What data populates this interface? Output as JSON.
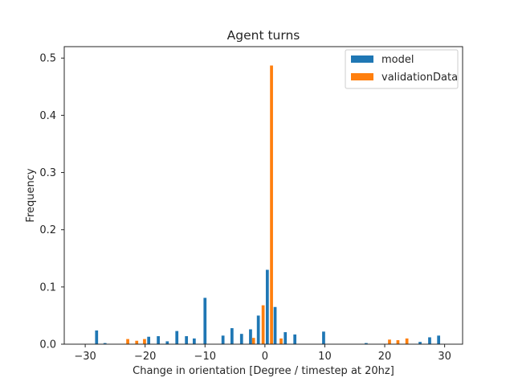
{
  "chart_data": {
    "type": "bar",
    "title": "Agent turns",
    "xlabel": "Change in orientation [Degree / timestep at 20hz]",
    "ylabel": "Frequency",
    "xlim": [
      -33.5,
      33.0
    ],
    "ylim": [
      0,
      0.52
    ],
    "xticks": [
      -30,
      -20,
      -10,
      0,
      10,
      20,
      30
    ],
    "yticks": [
      0.0,
      0.1,
      0.2,
      0.3,
      0.4,
      0.5
    ],
    "xtick_labels": [
      "−30",
      "−20",
      "−10",
      "0",
      "10",
      "20",
      "30"
    ],
    "ytick_labels": [
      "0.0",
      "0.1",
      "0.2",
      "0.3",
      "0.4",
      "0.5"
    ],
    "grid": false,
    "legend_position": "upper right",
    "bar_width": 0.5,
    "series": [
      {
        "name": "model",
        "color": "#1f77b4",
        "x": [
          -28.1,
          -26.7,
          -19.4,
          -17.8,
          -16.3,
          -14.7,
          -13.1,
          -11.8,
          -10.0,
          -7.0,
          -5.5,
          -3.9,
          -2.4,
          -1.1,
          0.4,
          1.7,
          3.4,
          5.0,
          9.8,
          16.9,
          25.9,
          27.5,
          29.0
        ],
        "values": [
          0.024,
          0.002,
          0.013,
          0.014,
          0.005,
          0.023,
          0.014,
          0.01,
          0.081,
          0.015,
          0.028,
          0.018,
          0.026,
          0.05,
          0.13,
          0.065,
          0.021,
          0.017,
          0.022,
          0.002,
          0.004,
          0.012,
          0.015
        ]
      },
      {
        "name": "validationData",
        "color": "#ff7f0e",
        "x": [
          -22.9,
          -21.4,
          -20.1,
          -1.9,
          -0.3,
          1.1,
          2.7,
          20.8,
          22.2,
          23.7
        ],
        "values": [
          0.009,
          0.006,
          0.009,
          0.011,
          0.068,
          0.487,
          0.01,
          0.008,
          0.007,
          0.01
        ]
      }
    ]
  }
}
